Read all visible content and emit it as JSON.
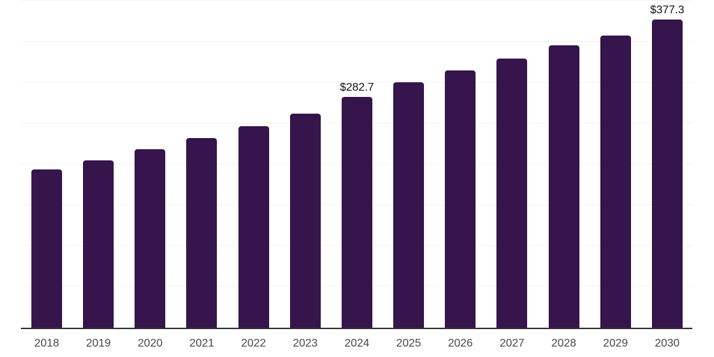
{
  "chart_data": {
    "type": "bar",
    "title": "",
    "xlabel": "",
    "ylabel": "",
    "categories": [
      "2018",
      "2019",
      "2020",
      "2021",
      "2022",
      "2023",
      "2024",
      "2025",
      "2026",
      "2027",
      "2028",
      "2029",
      "2030"
    ],
    "values": [
      193.3,
      204.8,
      218.8,
      231.6,
      246.1,
      262.3,
      282.7,
      300.2,
      315.1,
      329.5,
      345.7,
      357.2,
      377.3
    ],
    "currency_prefix": "$",
    "data_labels": [
      {
        "category": "2024",
        "text": "$282.7"
      },
      {
        "category": "2030",
        "text": "$377.3"
      }
    ],
    "ylim": [
      0,
      400
    ],
    "gridline_step": 50,
    "grid": "horizontal-only",
    "y_tick_labels_shown": false,
    "legend": "none",
    "colors": {
      "bar": "#35154B",
      "axis_line": "#333333",
      "gridline": "#F2F2F2",
      "tick_label": "#474747",
      "data_label": "#111111",
      "background": "#FFFFFF"
    }
  }
}
